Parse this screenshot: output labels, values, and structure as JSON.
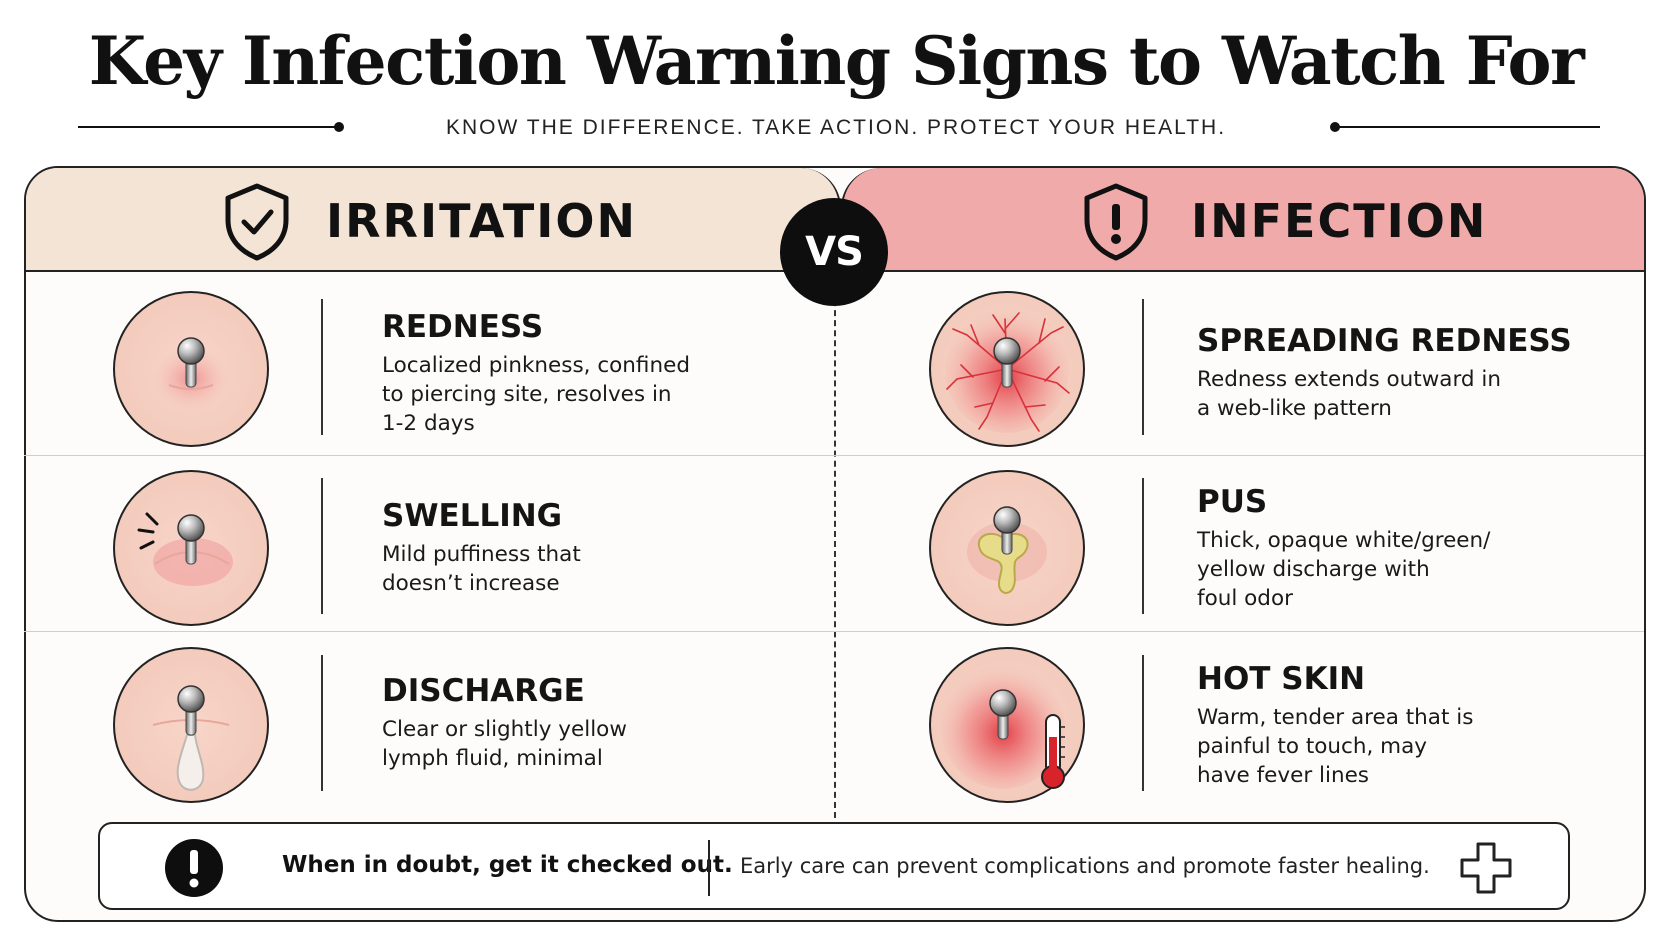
{
  "header": {
    "title": "Key Infection Warning Signs to Watch For",
    "subtitle": "KNOW THE DIFFERENCE. TAKE ACTION. PROTECT YOUR HEALTH."
  },
  "columns": {
    "irritation": {
      "label": "IRRITATION",
      "icon": "shield-check-icon",
      "color": "#f4e4d6"
    },
    "infection": {
      "label": "INFECTION",
      "icon": "shield-alert-icon",
      "color": "#efaaa9"
    },
    "vs": "VS"
  },
  "irritation_items": [
    {
      "title": "REDNESS",
      "lines": [
        "Localized pinkness, confined",
        "to piercing site, resolves in",
        "1-2 days"
      ],
      "icon": "redness-piercing-icon"
    },
    {
      "title": "SWELLING",
      "lines": [
        "Mild puffiness that",
        "doesn’t increase"
      ],
      "icon": "swelling-piercing-icon"
    },
    {
      "title": "DISCHARGE",
      "lines": [
        "Clear or slightly yellow",
        "lymph fluid, minimal"
      ],
      "icon": "clear-discharge-icon"
    }
  ],
  "infection_items": [
    {
      "title": "SPREADING REDNESS",
      "lines": [
        "Redness extends outward in",
        "a web-like pattern"
      ],
      "icon": "spreading-redness-icon"
    },
    {
      "title": "PUS",
      "lines": [
        "Thick, opaque white/green/",
        "yellow discharge with",
        "foul odor"
      ],
      "icon": "pus-discharge-icon"
    },
    {
      "title": "HOT SKIN",
      "lines": [
        "Warm, tender area that is",
        "painful to touch, may",
        "have fever lines"
      ],
      "icon": "thermometer-hot-skin-icon"
    }
  ],
  "banner": {
    "strong": "When in doubt, get it checked out.",
    "text": "Early care can prevent complications and promote faster healing.",
    "left_icon": "exclamation-icon",
    "right_icon": "medical-cross-icon"
  }
}
